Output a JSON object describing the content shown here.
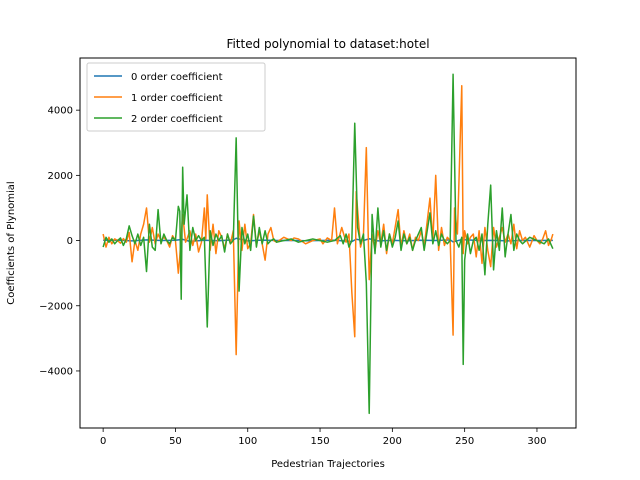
{
  "chart_data": {
    "type": "line",
    "title": "Fitted polynomial to dataset:hotel",
    "xlabel": "Pedestrian Trajectories",
    "ylabel": "Coefficients of Plynomial",
    "xlim": [
      -16,
      327
    ],
    "ylim": [
      -5750,
      5600
    ],
    "xticks": [
      0,
      50,
      100,
      150,
      200,
      250,
      300
    ],
    "yticks": [
      -4000,
      -2000,
      0,
      2000,
      4000
    ],
    "grid": false,
    "legend_position": "upper-left",
    "colors": {
      "s0": "#1f77b4",
      "s1": "#ff7f0e",
      "s2": "#2ca02c"
    },
    "series": [
      {
        "name": "0 order coefficient",
        "points": [
          [
            0,
            10
          ],
          [
            10,
            15
          ],
          [
            20,
            -10
          ],
          [
            30,
            20
          ],
          [
            40,
            0
          ],
          [
            50,
            10
          ],
          [
            55,
            35
          ],
          [
            60,
            -25
          ],
          [
            70,
            10
          ],
          [
            80,
            -5
          ],
          [
            90,
            20
          ],
          [
            92,
            70
          ],
          [
            100,
            -10
          ],
          [
            110,
            15
          ],
          [
            120,
            0
          ],
          [
            130,
            5
          ],
          [
            140,
            -5
          ],
          [
            150,
            0
          ],
          [
            160,
            10
          ],
          [
            172,
            -30
          ],
          [
            175,
            40
          ],
          [
            180,
            0
          ],
          [
            184,
            55
          ],
          [
            190,
            -10
          ],
          [
            200,
            5
          ],
          [
            210,
            -5
          ],
          [
            220,
            10
          ],
          [
            230,
            0
          ],
          [
            240,
            20
          ],
          [
            242,
            -40
          ],
          [
            248,
            30
          ],
          [
            260,
            0
          ],
          [
            270,
            5
          ],
          [
            280,
            -10
          ],
          [
            290,
            5
          ],
          [
            300,
            0
          ],
          [
            311,
            5
          ]
        ]
      },
      {
        "name": "1 order coefficient",
        "points": [
          [
            0,
            200
          ],
          [
            2,
            -200
          ],
          [
            4,
            100
          ],
          [
            6,
            -100
          ],
          [
            8,
            50
          ],
          [
            10,
            0
          ],
          [
            12,
            -80
          ],
          [
            14,
            60
          ],
          [
            16,
            -50
          ],
          [
            18,
            250
          ],
          [
            20,
            -650
          ],
          [
            22,
            0
          ],
          [
            24,
            -300
          ],
          [
            26,
            200
          ],
          [
            28,
            500
          ],
          [
            30,
            1000
          ],
          [
            32,
            -50
          ],
          [
            34,
            400
          ],
          [
            36,
            -100
          ],
          [
            38,
            200
          ],
          [
            40,
            0
          ],
          [
            42,
            100
          ],
          [
            44,
            0
          ],
          [
            46,
            -200
          ],
          [
            48,
            150
          ],
          [
            50,
            0
          ],
          [
            52,
            -1000
          ],
          [
            53,
            -500
          ],
          [
            55,
            800
          ],
          [
            57,
            -50
          ],
          [
            58,
            50
          ],
          [
            60,
            300
          ],
          [
            62,
            -150
          ],
          [
            64,
            200
          ],
          [
            66,
            -350
          ],
          [
            68,
            -50
          ],
          [
            70,
            1000
          ],
          [
            71,
            50
          ],
          [
            72,
            1400
          ],
          [
            74,
            -300
          ],
          [
            76,
            500
          ],
          [
            78,
            -400
          ],
          [
            80,
            300
          ],
          [
            82,
            100
          ],
          [
            84,
            -250
          ],
          [
            86,
            200
          ],
          [
            88,
            -100
          ],
          [
            90,
            300
          ],
          [
            92,
            -3500
          ],
          [
            94,
            600
          ],
          [
            96,
            -300
          ],
          [
            98,
            500
          ],
          [
            100,
            -250
          ],
          [
            102,
            -80
          ],
          [
            104,
            800
          ],
          [
            106,
            -150
          ],
          [
            108,
            300
          ],
          [
            110,
            -100
          ],
          [
            112,
            -600
          ],
          [
            114,
            200
          ],
          [
            116,
            400
          ],
          [
            118,
            0
          ],
          [
            120,
            -50
          ],
          [
            125,
            100
          ],
          [
            130,
            0
          ],
          [
            132,
            80
          ],
          [
            135,
            50
          ],
          [
            140,
            -100
          ],
          [
            145,
            0
          ],
          [
            150,
            50
          ],
          [
            152,
            -100
          ],
          [
            155,
            80
          ],
          [
            158,
            0
          ],
          [
            160,
            1000
          ],
          [
            162,
            -100
          ],
          [
            165,
            400
          ],
          [
            168,
            -50
          ],
          [
            170,
            200
          ],
          [
            172,
            -1600
          ],
          [
            174,
            -2950
          ],
          [
            175,
            1500
          ],
          [
            178,
            -200
          ],
          [
            180,
            150
          ],
          [
            182,
            2850
          ],
          [
            184,
            -1200
          ],
          [
            186,
            200
          ],
          [
            188,
            -300
          ],
          [
            190,
            300
          ],
          [
            192,
            -100
          ],
          [
            194,
            500
          ],
          [
            196,
            -400
          ],
          [
            198,
            200
          ],
          [
            200,
            -100
          ],
          [
            204,
            950
          ],
          [
            206,
            -200
          ],
          [
            208,
            300
          ],
          [
            210,
            -100
          ],
          [
            212,
            200
          ],
          [
            214,
            -300
          ],
          [
            216,
            100
          ],
          [
            218,
            0
          ],
          [
            220,
            300
          ],
          [
            222,
            -200
          ],
          [
            226,
            1300
          ],
          [
            228,
            0
          ],
          [
            230,
            2000
          ],
          [
            232,
            -300
          ],
          [
            234,
            400
          ],
          [
            236,
            -150
          ],
          [
            238,
            100
          ],
          [
            240,
            0
          ],
          [
            242,
            -2900
          ],
          [
            243,
            1000
          ],
          [
            245,
            200
          ],
          [
            248,
            4750
          ],
          [
            249,
            -400
          ],
          [
            250,
            300
          ],
          [
            252,
            -100
          ],
          [
            254,
            100
          ],
          [
            256,
            200
          ],
          [
            258,
            -500
          ],
          [
            260,
            300
          ],
          [
            262,
            -700
          ],
          [
            264,
            400
          ],
          [
            266,
            -300
          ],
          [
            268,
            -800
          ],
          [
            270,
            400
          ],
          [
            272,
            -200
          ],
          [
            274,
            100
          ],
          [
            276,
            400
          ],
          [
            278,
            -50
          ],
          [
            280,
            200
          ],
          [
            282,
            -100
          ],
          [
            284,
            500
          ],
          [
            286,
            -250
          ],
          [
            288,
            300
          ],
          [
            290,
            0
          ],
          [
            292,
            100
          ],
          [
            295,
            -200
          ],
          [
            298,
            150
          ],
          [
            300,
            0
          ],
          [
            302,
            -100
          ],
          [
            304,
            50
          ],
          [
            306,
            300
          ],
          [
            308,
            -150
          ],
          [
            310,
            50
          ],
          [
            311,
            200
          ]
        ]
      },
      {
        "name": "2 order coefficient",
        "points": [
          [
            0,
            -200
          ],
          [
            2,
            100
          ],
          [
            4,
            -50
          ],
          [
            6,
            50
          ],
          [
            8,
            -100
          ],
          [
            10,
            0
          ],
          [
            12,
            80
          ],
          [
            14,
            -150
          ],
          [
            16,
            50
          ],
          [
            18,
            450
          ],
          [
            20,
            150
          ],
          [
            22,
            -100
          ],
          [
            24,
            200
          ],
          [
            26,
            -150
          ],
          [
            28,
            100
          ],
          [
            30,
            -950
          ],
          [
            32,
            500
          ],
          [
            34,
            -200
          ],
          [
            36,
            -300
          ],
          [
            38,
            950
          ],
          [
            40,
            -100
          ],
          [
            42,
            200
          ],
          [
            44,
            0
          ],
          [
            46,
            -100
          ],
          [
            48,
            100
          ],
          [
            50,
            0
          ],
          [
            52,
            1050
          ],
          [
            53,
            900
          ],
          [
            54,
            -1800
          ],
          [
            55,
            2250
          ],
          [
            56,
            500
          ],
          [
            58,
            1400
          ],
          [
            60,
            -300
          ],
          [
            62,
            400
          ],
          [
            64,
            0
          ],
          [
            66,
            150
          ],
          [
            68,
            0
          ],
          [
            70,
            100
          ],
          [
            72,
            -2650
          ],
          [
            74,
            300
          ],
          [
            76,
            -150
          ],
          [
            78,
            200
          ],
          [
            80,
            0
          ],
          [
            82,
            150
          ],
          [
            84,
            -350
          ],
          [
            86,
            200
          ],
          [
            88,
            -100
          ],
          [
            90,
            0
          ],
          [
            92,
            3150
          ],
          [
            94,
            -1550
          ],
          [
            96,
            400
          ],
          [
            98,
            -100
          ],
          [
            100,
            200
          ],
          [
            102,
            -300
          ],
          [
            104,
            750
          ],
          [
            106,
            -200
          ],
          [
            108,
            400
          ],
          [
            110,
            -100
          ],
          [
            112,
            300
          ],
          [
            114,
            -100
          ],
          [
            116,
            0
          ],
          [
            118,
            50
          ],
          [
            120,
            -50
          ],
          [
            125,
            0
          ],
          [
            130,
            50
          ],
          [
            135,
            -50
          ],
          [
            140,
            0
          ],
          [
            145,
            50
          ],
          [
            150,
            0
          ],
          [
            155,
            -50
          ],
          [
            160,
            0
          ],
          [
            164,
            150
          ],
          [
            166,
            -100
          ],
          [
            168,
            200
          ],
          [
            170,
            -200
          ],
          [
            172,
            0
          ],
          [
            174,
            3600
          ],
          [
            176,
            400
          ],
          [
            178,
            -100
          ],
          [
            180,
            200
          ],
          [
            182,
            -1300
          ],
          [
            184,
            -5300
          ],
          [
            186,
            800
          ],
          [
            188,
            -400
          ],
          [
            190,
            1000
          ],
          [
            192,
            -200
          ],
          [
            194,
            300
          ],
          [
            196,
            -300
          ],
          [
            198,
            200
          ],
          [
            200,
            -200
          ],
          [
            202,
            100
          ],
          [
            204,
            600
          ],
          [
            206,
            -300
          ],
          [
            208,
            200
          ],
          [
            210,
            -100
          ],
          [
            212,
            100
          ],
          [
            214,
            -300
          ],
          [
            216,
            0
          ],
          [
            218,
            200
          ],
          [
            220,
            400
          ],
          [
            222,
            -300
          ],
          [
            226,
            850
          ],
          [
            228,
            -100
          ],
          [
            230,
            300
          ],
          [
            232,
            -150
          ],
          [
            234,
            200
          ],
          [
            236,
            0
          ],
          [
            238,
            -100
          ],
          [
            240,
            0
          ],
          [
            242,
            5100
          ],
          [
            244,
            0
          ],
          [
            246,
            -200
          ],
          [
            248,
            100
          ],
          [
            249,
            -3800
          ],
          [
            250,
            -600
          ],
          [
            252,
            200
          ],
          [
            254,
            -400
          ],
          [
            256,
            0
          ],
          [
            258,
            100
          ],
          [
            260,
            -300
          ],
          [
            262,
            200
          ],
          [
            264,
            -1050
          ],
          [
            266,
            500
          ],
          [
            268,
            1700
          ],
          [
            270,
            -900
          ],
          [
            272,
            300
          ],
          [
            274,
            -300
          ],
          [
            276,
            1000
          ],
          [
            278,
            -500
          ],
          [
            280,
            200
          ],
          [
            282,
            800
          ],
          [
            284,
            -300
          ],
          [
            286,
            200
          ],
          [
            288,
            0
          ],
          [
            290,
            -100
          ],
          [
            295,
            100
          ],
          [
            300,
            0
          ],
          [
            305,
            -100
          ],
          [
            308,
            50
          ],
          [
            311,
            -250
          ]
        ]
      }
    ]
  }
}
